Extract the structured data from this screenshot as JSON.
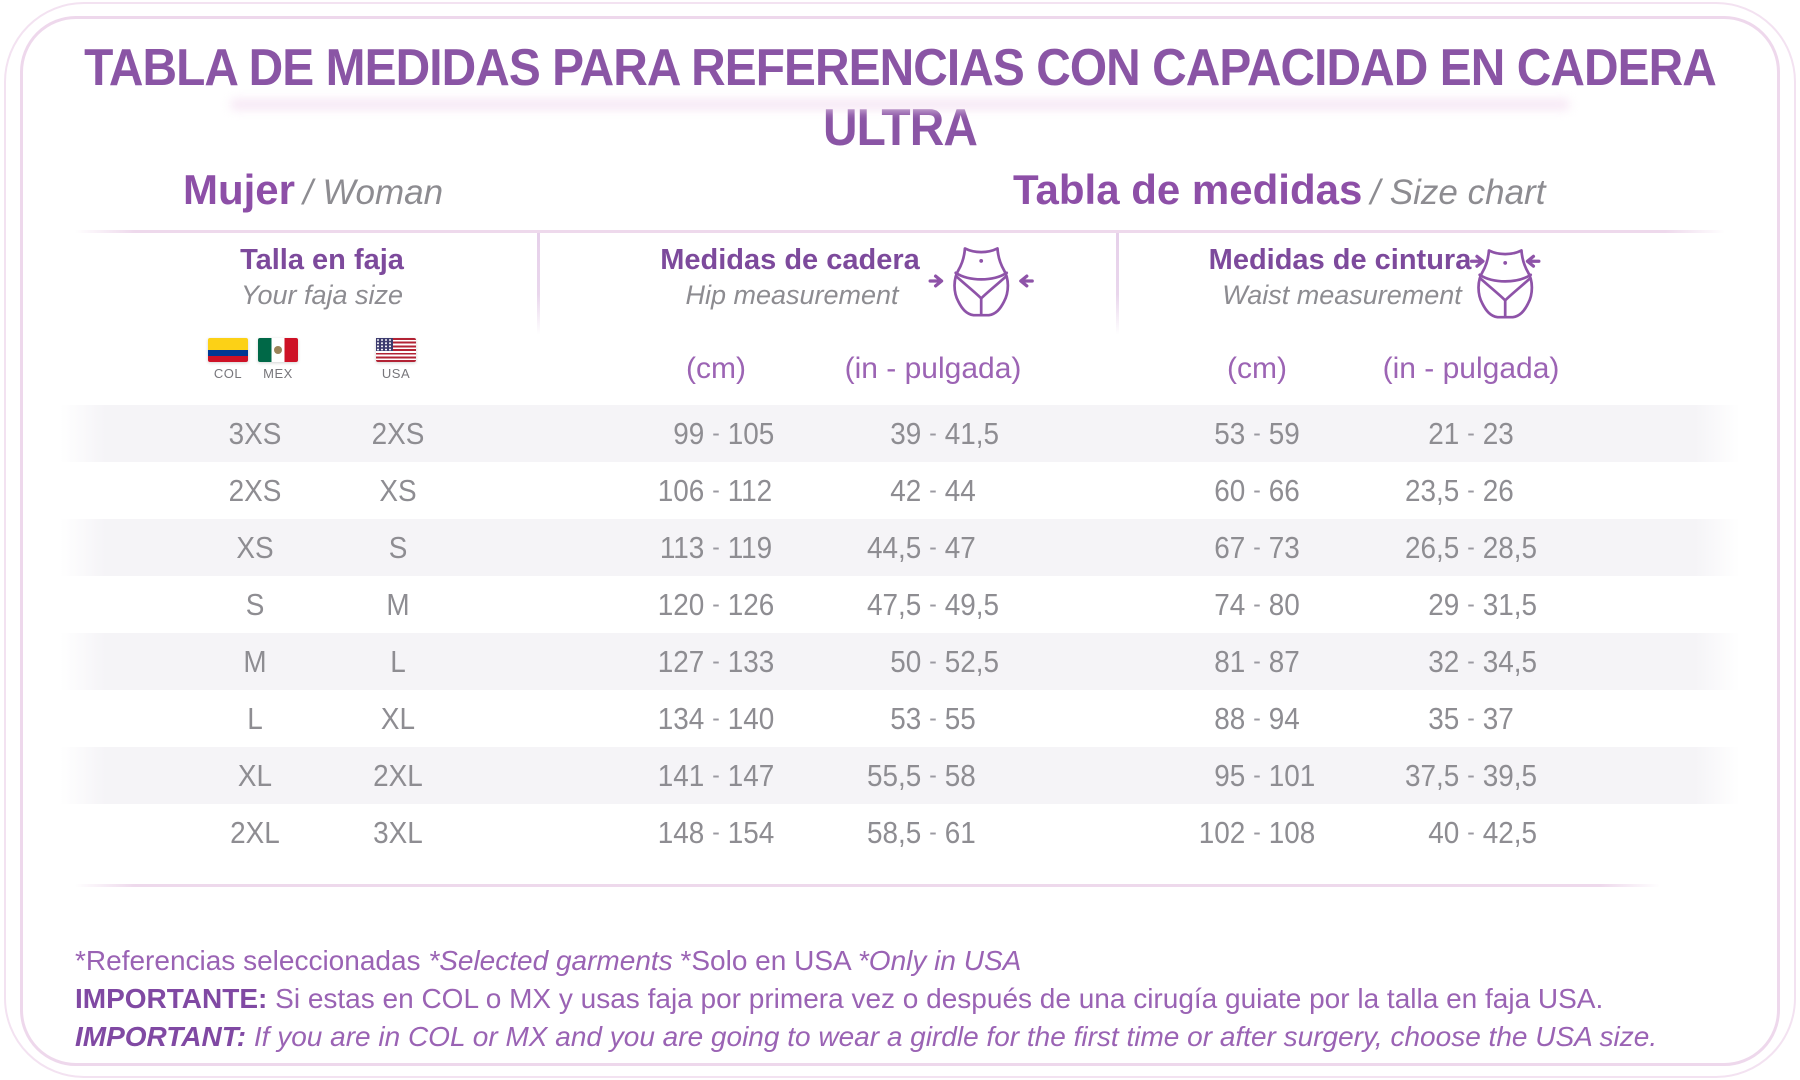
{
  "title": "TABLA DE MEDIDAS PARA REFERENCIAS CON CAPACIDAD EN CADERA ULTRA",
  "colors": {
    "title_purple": "#8a55a5",
    "heading_purple": "#8d4fa7",
    "header_purple": "#7d4a9c",
    "unit_purple": "#9c64b4",
    "footnote_purple": "#9a63b4",
    "footnote_bold_purple": "#8049a3",
    "body_gray": "#8e8d92",
    "stripe_gray": "#f5f4f7",
    "line_pink": "#eed9ec",
    "icon_purple": "#8e53a8"
  },
  "headings": {
    "left": {
      "main": "Mujer",
      "rest": "/ Woman"
    },
    "right": {
      "main": "Tabla de medidas",
      "rest": "/ Size chart"
    }
  },
  "table": {
    "groups": {
      "size": {
        "title": "Talla en faja",
        "subtitle": "Your faja size",
        "flags": [
          {
            "code": "COL",
            "icon": "colombia-flag-icon"
          },
          {
            "code": "MEX",
            "icon": "mexico-flag-icon"
          },
          {
            "code": "USA",
            "icon": "usa-flag-icon"
          }
        ]
      },
      "hip": {
        "title": "Medidas de cadera",
        "subtitle": "Hip measurement",
        "icon": "hip-measurement-icon",
        "units": {
          "cm": "(cm)",
          "inch": "(in - pulgada)"
        }
      },
      "waist": {
        "title": "Medidas de cintura",
        "subtitle": "Waist measurement",
        "icon": "waist-measurement-icon",
        "units": {
          "cm": "(cm)",
          "inch": "(in - pulgada)"
        }
      }
    },
    "range_separator": "-",
    "rows": [
      {
        "size_col_mex": "3XS",
        "size_usa": "2XS",
        "hip_cm": [
          "99",
          "105"
        ],
        "hip_in": [
          "39",
          "41,5"
        ],
        "waist_cm": [
          "53",
          "59"
        ],
        "waist_in": [
          "21",
          "23"
        ]
      },
      {
        "size_col_mex": "2XS",
        "size_usa": "XS",
        "hip_cm": [
          "106",
          "112"
        ],
        "hip_in": [
          "42",
          "44"
        ],
        "waist_cm": [
          "60",
          "66"
        ],
        "waist_in": [
          "23,5",
          "26"
        ]
      },
      {
        "size_col_mex": "XS",
        "size_usa": "S",
        "hip_cm": [
          "113",
          "119"
        ],
        "hip_in": [
          "44,5",
          "47"
        ],
        "waist_cm": [
          "67",
          "73"
        ],
        "waist_in": [
          "26,5",
          "28,5"
        ]
      },
      {
        "size_col_mex": "S",
        "size_usa": "M",
        "hip_cm": [
          "120",
          "126"
        ],
        "hip_in": [
          "47,5",
          "49,5"
        ],
        "waist_cm": [
          "74",
          "80"
        ],
        "waist_in": [
          "29",
          "31,5"
        ]
      },
      {
        "size_col_mex": "M",
        "size_usa": "L",
        "hip_cm": [
          "127",
          "133"
        ],
        "hip_in": [
          "50",
          "52,5"
        ],
        "waist_cm": [
          "81",
          "87"
        ],
        "waist_in": [
          "32",
          "34,5"
        ]
      },
      {
        "size_col_mex": "L",
        "size_usa": "XL",
        "hip_cm": [
          "134",
          "140"
        ],
        "hip_in": [
          "53",
          "55"
        ],
        "waist_cm": [
          "88",
          "94"
        ],
        "waist_in": [
          "35",
          "37"
        ]
      },
      {
        "size_col_mex": "XL",
        "size_usa": "2XL",
        "hip_cm": [
          "141",
          "147"
        ],
        "hip_in": [
          "55,5",
          "58"
        ],
        "waist_cm": [
          "95",
          "101"
        ],
        "waist_in": [
          "37,5",
          "39,5"
        ]
      },
      {
        "size_col_mex": "2XL",
        "size_usa": "3XL",
        "hip_cm": [
          "148",
          "154"
        ],
        "hip_in": [
          "58,5",
          "61"
        ],
        "waist_cm": [
          "102",
          "108"
        ],
        "waist_in": [
          "40",
          "42,5"
        ]
      }
    ]
  },
  "footnotes": {
    "note1_es": "*Referencias seleccionadas ",
    "note1_en": "*Selected garments ",
    "note2_es": "*Solo en USA ",
    "note2_en": "*Only in USA",
    "important_es_label": "IMPORTANTE:",
    "important_es_text": " Si estas en COL o MX y usas faja por primera vez o después de una cirugía guiate por la talla en faja USA.",
    "important_en_label": "IMPORTANT:",
    "important_en_text": " If you are in COL or MX and you are going to wear a girdle for the first time or after surgery, choose the USA size."
  },
  "chart_data": {
    "type": "table",
    "title": "TABLA DE MEDIDAS PARA REFERENCIAS CON CAPACIDAD EN CADERA ULTRA",
    "columns": [
      "Talla en faja COL/MEX",
      "Talla en faja USA",
      "Medidas de cadera (cm)",
      "Medidas de cadera (in - pulgada)",
      "Medidas de cintura (cm)",
      "Medidas de cintura (in - pulgada)"
    ],
    "rows": [
      [
        "3XS",
        "2XS",
        "99 - 105",
        "39 - 41,5",
        "53 - 59",
        "21 - 23"
      ],
      [
        "2XS",
        "XS",
        "106 - 112",
        "42 - 44",
        "60 - 66",
        "23,5 - 26"
      ],
      [
        "XS",
        "S",
        "113 - 119",
        "44,5 - 47",
        "67 - 73",
        "26,5 - 28,5"
      ],
      [
        "S",
        "M",
        "120 - 126",
        "47,5 - 49,5",
        "74 - 80",
        "29 - 31,5"
      ],
      [
        "M",
        "L",
        "127 - 133",
        "50 - 52,5",
        "81 - 87",
        "32 - 34,5"
      ],
      [
        "L",
        "XL",
        "134 - 140",
        "53 - 55",
        "88 - 94",
        "35 - 37"
      ],
      [
        "XL",
        "2XL",
        "141 - 147",
        "55,5 - 58",
        "95 - 101",
        "37,5 - 39,5"
      ],
      [
        "2XL",
        "3XL",
        "148 - 154",
        "58,5 - 61",
        "102 - 108",
        "40 - 42,5"
      ]
    ]
  }
}
